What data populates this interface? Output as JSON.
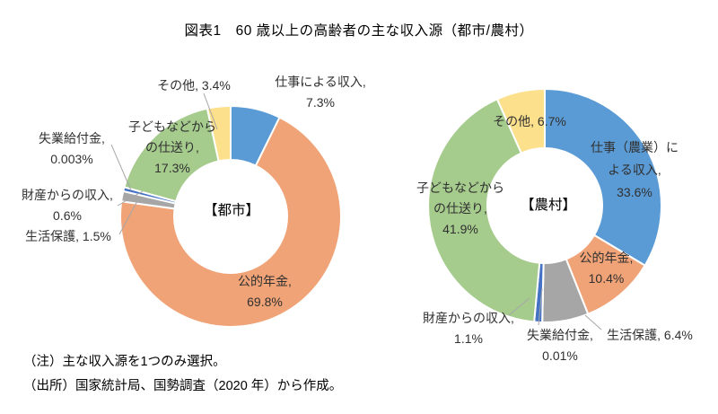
{
  "header": {
    "title": "図表1　60 歳以上の高齢者の主な収入源（都市/農村）"
  },
  "notes": {
    "note": "（注）主な収入源を1つのみ選択。",
    "source": "（出所）国家統計局、国勢調査（2020 年）から作成。"
  },
  "palette": {
    "work_blue": "#5B9BD5",
    "pension_orange": "#F0A377",
    "welfare_gray": "#A6A6A6",
    "unemployment_yellow": "#FFC000",
    "property_dark_blue": "#4472C4",
    "children_green": "#A5CB8D",
    "other_pale_yellow": "#FCE08C",
    "leader_line_gray": "#A6A6A6"
  },
  "chart_data": [
    {
      "type": "pie",
      "subtype": "donut",
      "center_label": "【都市】",
      "categories": [
        "仕事による収入",
        "公的年金",
        "生活保護",
        "失業給付金",
        "財産からの収入",
        "子どもなどからの仕送り",
        "その他"
      ],
      "values": [
        7.3,
        69.8,
        1.5,
        0.003,
        0.6,
        17.3,
        3.4
      ],
      "slice_colors": [
        "#5B9BD5",
        "#F0A377",
        "#A6A6A6",
        "#FFC000",
        "#4472C4",
        "#A5CB8D",
        "#FCE08C"
      ],
      "hole_ratio": 0.51,
      "start_angle_deg": 0,
      "direction": "clockwise",
      "labels": [
        {
          "category": "仕事による収入",
          "lines": [
            "仕事による収入,",
            "7.3%"
          ]
        },
        {
          "category": "公的年金",
          "lines": [
            "公的年金,",
            "69.8%"
          ]
        },
        {
          "category": "生活保護",
          "lines": [
            "生活保護, 1.5%"
          ]
        },
        {
          "category": "失業給付金",
          "lines": [
            "失業給付金,",
            "0.003%"
          ]
        },
        {
          "category": "財産からの収入",
          "lines": [
            "財産からの収入,",
            "0.6%"
          ]
        },
        {
          "category": "子どもなどからの仕送り",
          "lines": [
            "子どもなどから",
            "の仕送り,",
            "17.3%"
          ]
        },
        {
          "category": "その他",
          "lines": [
            "その他, 3.4%"
          ]
        }
      ]
    },
    {
      "type": "pie",
      "subtype": "donut",
      "center_label": "【農村】",
      "categories": [
        "仕事（農業）による収入",
        "公的年金",
        "生活保護",
        "失業給付金",
        "財産からの収入",
        "子どもなどからの仕送り",
        "その他"
      ],
      "values": [
        33.6,
        10.4,
        6.4,
        0.01,
        1.1,
        41.9,
        6.7
      ],
      "slice_colors": [
        "#5B9BD5",
        "#F0A377",
        "#A6A6A6",
        "#FFC000",
        "#4472C4",
        "#A5CB8D",
        "#FCE08C"
      ],
      "hole_ratio": 0.5,
      "start_angle_deg": 0,
      "direction": "clockwise",
      "labels": [
        {
          "category": "仕事（農業）による収入",
          "lines": [
            "仕事（農業）に",
            "よる収入,",
            "33.6%"
          ]
        },
        {
          "category": "公的年金",
          "lines": [
            "公的年金,",
            "10.4%"
          ]
        },
        {
          "category": "生活保護",
          "lines": [
            "生活保護, 6.4%"
          ]
        },
        {
          "category": "失業給付金",
          "lines": [
            "失業給付金,",
            "0.01%"
          ]
        },
        {
          "category": "財産からの収入",
          "lines": [
            "財産からの収入,",
            "1.1%"
          ]
        },
        {
          "category": "子どもなどからの仕送り",
          "lines": [
            "子どもなどから",
            "の仕送り,",
            "41.9%"
          ]
        },
        {
          "category": "その他",
          "lines": [
            "その他, 6.7%"
          ]
        }
      ]
    }
  ]
}
